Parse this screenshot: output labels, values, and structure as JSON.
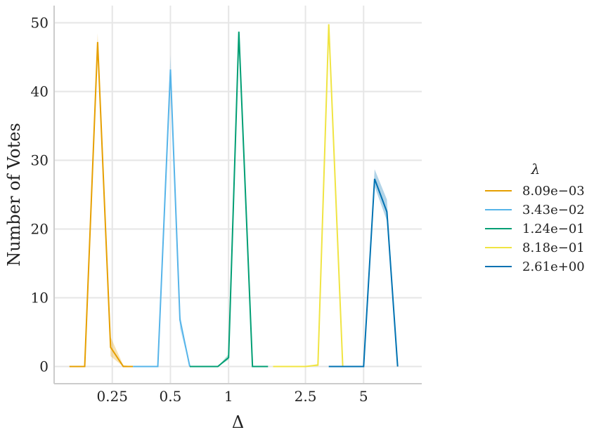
{
  "chart_data": {
    "type": "line",
    "xlabel": "Δ",
    "ylabel": "Number of Votes",
    "xscale": "log",
    "xlim": [
      0.125,
      10
    ],
    "ylim": [
      -2.5,
      52.5
    ],
    "xticks": [
      {
        "value": 0.25,
        "label": "0.25"
      },
      {
        "value": 0.5,
        "label": "0.5"
      },
      {
        "value": 1,
        "label": "1"
      },
      {
        "value": 2.5,
        "label": "2.5"
      },
      {
        "value": 5,
        "label": "5"
      }
    ],
    "yticks": [
      0,
      10,
      20,
      30,
      40,
      50
    ],
    "grid": true,
    "legend": {
      "title": "λ",
      "placement": "right"
    },
    "series": [
      {
        "name": "8.09e−03",
        "color": "#E69F00",
        "x": [
          0.15,
          0.18,
          0.21,
          0.245,
          0.285,
          0.32
        ],
        "y": [
          0,
          0,
          47.2,
          2.8,
          0,
          0
        ],
        "band": [
          [
            0,
            0
          ],
          [
            0,
            0
          ],
          [
            46,
            48.5
          ],
          [
            1.5,
            4.3
          ],
          [
            0,
            0.2
          ],
          [
            0,
            0
          ]
        ]
      },
      {
        "name": "3.43e−02",
        "color": "#56B4E9",
        "x": [
          0.32,
          0.36,
          0.43,
          0.5,
          0.56,
          0.63
        ],
        "y": [
          0,
          0,
          0,
          43.2,
          6.8,
          0
        ],
        "band": [
          [
            0,
            0
          ],
          [
            0,
            0
          ],
          [
            0,
            0
          ],
          [
            41.3,
            45.3
          ],
          [
            5.5,
            7.7
          ],
          [
            0,
            0
          ]
        ]
      },
      {
        "name": "1.24e−01",
        "color": "#009E73",
        "x": [
          0.63,
          0.74,
          0.88,
          1.0,
          1.13,
          1.33,
          1.6
        ],
        "y": [
          0,
          0,
          0,
          1.3,
          48.7,
          0,
          0
        ],
        "band": [
          [
            0,
            0
          ],
          [
            0,
            0
          ],
          [
            0,
            0
          ],
          [
            1.0,
            1.8
          ],
          [
            48.3,
            49
          ],
          [
            0,
            0
          ],
          [
            0,
            0
          ]
        ]
      },
      {
        "name": "8.18e−01",
        "color": "#F0E442",
        "x": [
          1.7,
          2.0,
          2.5,
          2.9,
          3.3,
          3.9
        ],
        "y": [
          0,
          0,
          0,
          0.2,
          49.8,
          0
        ],
        "band": [
          [
            0,
            0
          ],
          [
            0,
            0
          ],
          [
            0,
            0
          ],
          [
            0,
            0.4
          ],
          [
            49.6,
            50
          ],
          [
            0,
            0
          ]
        ]
      },
      {
        "name": "2.61e+00",
        "color": "#0072B2",
        "x": [
          3.3,
          3.9,
          4.4,
          5.0,
          5.7,
          6.6,
          7.5
        ],
        "y": [
          0,
          0,
          0,
          0,
          27.3,
          22.5,
          0
        ],
        "band": [
          [
            0,
            0
          ],
          [
            0,
            0
          ],
          [
            0,
            0
          ],
          [
            0,
            0
          ],
          [
            26.2,
            28.7
          ],
          [
            21.2,
            24.3
          ],
          [
            0,
            0
          ]
        ]
      }
    ]
  }
}
